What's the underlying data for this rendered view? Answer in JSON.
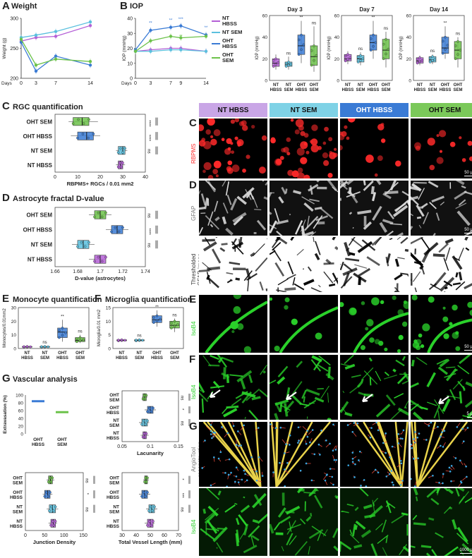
{
  "panels": {
    "A": {
      "letter": "A",
      "title": "Weight"
    },
    "B": {
      "letter": "B",
      "title": "IOP"
    },
    "C_left": {
      "letter": "C",
      "title": "RGC quantification"
    },
    "D_left": {
      "letter": "D",
      "title": "Astrocyte fractal D-value"
    },
    "E_left": {
      "letter": "E",
      "title": "Monocyte quantification"
    },
    "F_left": {
      "letter": "F",
      "title": "Microglia quantification"
    },
    "G_left": {
      "letter": "G",
      "title": "Vascular analysis"
    },
    "C_right": {
      "letter": "C"
    },
    "D_right": {
      "letter": "D"
    },
    "E_right": {
      "letter": "E"
    },
    "F_right": {
      "letter": "F"
    },
    "G_right": {
      "letter": "G"
    }
  },
  "groups": [
    "NT HBSS",
    "NT SEM",
    "OHT HBSS",
    "OHT SEM"
  ],
  "colors": {
    "NT HBSS": "#b45fd6",
    "NT SEM": "#5bc0de",
    "OHT HBSS": "#3a7bd5",
    "OHT SEM": "#6cc24a"
  },
  "legend": [
    "NT HBSS",
    "NT SEM",
    "OHT HBSS",
    "OHT SEM"
  ],
  "micro": {
    "headers": [
      "NT HBSS",
      "NT SEM",
      "OHT HBSS",
      "OHT SEM"
    ],
    "rows": [
      "RBPMS",
      "GFAP",
      "Thresholded GFAP-image",
      "IsoB4",
      "IsoB4",
      "AngioTool reconstruction",
      "IsoB4"
    ],
    "scalebars": [
      "50 µm",
      "50 µm",
      "50 µm",
      "5 µm",
      "1000 µm"
    ]
  },
  "chart_data": [
    {
      "id": "weight",
      "type": "line",
      "title": "Weight",
      "ylabel": "Weight (g)",
      "xlabel": "Days",
      "x": [
        0,
        3,
        7,
        14
      ],
      "ylim": [
        200,
        300
      ],
      "series": [
        {
          "name": "NT HBSS",
          "values": [
            262,
            268,
            270,
            288
          ]
        },
        {
          "name": "NT SEM",
          "values": [
            268,
            272,
            278,
            294
          ]
        },
        {
          "name": "OHT HBSS",
          "values": [
            260,
            212,
            237,
            222
          ]
        },
        {
          "name": "OHT SEM",
          "values": [
            265,
            222,
            232,
            228
          ]
        }
      ]
    },
    {
      "id": "iop",
      "type": "line",
      "title": "IOP",
      "ylabel": "IOP (mmHg)",
      "xlabel": "Days",
      "x": [
        0,
        3,
        7,
        9,
        14
      ],
      "ylim": [
        0,
        40
      ],
      "annotations": [
        "**",
        "**",
        "***",
        "**",
        "**",
        "*"
      ],
      "series": [
        {
          "name": "NT HBSS",
          "values": [
            18,
            19,
            20,
            20,
            18
          ]
        },
        {
          "name": "NT SEM",
          "values": [
            18,
            18,
            19,
            19,
            18
          ]
        },
        {
          "name": "OHT HBSS",
          "values": [
            19,
            32,
            34,
            35,
            29
          ]
        },
        {
          "name": "OHT SEM",
          "values": [
            18,
            25,
            28,
            27,
            28
          ]
        }
      ]
    },
    {
      "id": "day3",
      "type": "box",
      "title": "Day 3",
      "ylabel": "IOP (mmHg)",
      "ylim": [
        0,
        60
      ],
      "categories": [
        "NT HBSS",
        "NT SEM",
        "OHT HBSS",
        "OHT SEM"
      ],
      "medians": [
        16,
        15,
        32,
        22
      ],
      "q1": [
        13,
        13,
        24,
        14
      ],
      "q3": [
        20,
        17,
        42,
        32
      ],
      "min": [
        10,
        10,
        16,
        8
      ],
      "max": [
        24,
        22,
        55,
        50
      ],
      "sig": [
        "",
        "ns",
        "**",
        "ns"
      ]
    },
    {
      "id": "day7",
      "type": "box",
      "title": "Day 7",
      "ylabel": "IOP (mmHg)",
      "ylim": [
        0,
        60
      ],
      "categories": [
        "NT HBSS",
        "NT SEM",
        "OHT HBSS",
        "OHT SEM"
      ],
      "medians": [
        20,
        20,
        35,
        28
      ],
      "q1": [
        18,
        17,
        28,
        20
      ],
      "q3": [
        24,
        23,
        42,
        38
      ],
      "min": [
        15,
        14,
        20,
        12
      ],
      "max": [
        27,
        26,
        55,
        45
      ],
      "sig": [
        "",
        "ns",
        "**",
        "ns"
      ]
    },
    {
      "id": "day14",
      "type": "box",
      "title": "Day 14",
      "ylabel": "IOP (mmHg)",
      "ylim": [
        0,
        60
      ],
      "categories": [
        "NT HBSS",
        "NT SEM",
        "OHT HBSS",
        "OHT SEM"
      ],
      "medians": [
        18,
        19,
        30,
        28
      ],
      "q1": [
        16,
        17,
        25,
        20
      ],
      "q3": [
        21,
        22,
        40,
        36
      ],
      "min": [
        14,
        15,
        20,
        12
      ],
      "max": [
        23,
        24,
        50,
        40
      ],
      "sig": [
        "",
        "ns",
        "**",
        "ns"
      ]
    },
    {
      "id": "rgc",
      "type": "box-horizontal",
      "title": "RGC quantification",
      "xlabel": "RBPMS+ RGCs / 0.01 mm2",
      "xlim": [
        0,
        40
      ],
      "categories": [
        "OHT SEM",
        "OHT HBSS",
        "NT SEM",
        "NT HBSS"
      ],
      "medians": [
        12,
        14,
        30,
        29
      ],
      "q1": [
        8,
        10,
        28,
        28
      ],
      "q3": [
        15,
        17,
        31,
        30
      ],
      "min": [
        6,
        7,
        27,
        27
      ],
      "max": [
        19,
        20,
        32,
        31
      ],
      "sig": [
        "****",
        "****",
        "ns",
        ""
      ]
    },
    {
      "id": "astro",
      "type": "box-horizontal",
      "title": "Astrocyte fractal D-value",
      "xlabel": "D-value (astrocytes)",
      "xlim": [
        1.66,
        1.74
      ],
      "categories": [
        "OHT SEM",
        "OHT HBSS",
        "NT SEM",
        "NT HBSS"
      ],
      "medians": [
        1.7,
        1.715,
        1.685,
        1.7
      ],
      "q1": [
        1.695,
        1.71,
        1.68,
        1.695
      ],
      "q3": [
        1.705,
        1.72,
        1.69,
        1.705
      ],
      "min": [
        1.69,
        1.705,
        1.675,
        1.69
      ],
      "max": [
        1.71,
        1.725,
        1.695,
        1.705
      ],
      "sig": [
        "ns",
        "****",
        "ns",
        ""
      ]
    },
    {
      "id": "mono",
      "type": "box",
      "title": "Monocyte quantification",
      "ylabel": "Monocytes/0.01mm2",
      "ylim": [
        0,
        30
      ],
      "categories": [
        "NT HBSS",
        "NT SEM",
        "OHT HBSS",
        "OHT SEM"
      ],
      "medians": [
        1,
        1,
        12,
        6
      ],
      "q1": [
        1,
        1,
        8,
        5
      ],
      "q3": [
        1.5,
        1.5,
        15,
        8
      ],
      "min": [
        0.5,
        0.5,
        5,
        4
      ],
      "max": [
        2,
        2,
        21,
        10
      ],
      "sig": [
        "",
        "ns",
        "**",
        "ns"
      ]
    },
    {
      "id": "micro",
      "type": "box",
      "title": "Microglia quantification",
      "ylabel": "Microglia/0.01 mm2",
      "ylim": [
        0,
        15
      ],
      "categories": [
        "NT HBSS",
        "NT SEM",
        "OHT HBSS",
        "OHT SEM"
      ],
      "medians": [
        3,
        3,
        10.5,
        8.5
      ],
      "q1": [
        2.8,
        2.8,
        9.5,
        7.5
      ],
      "q3": [
        3.2,
        3.2,
        12,
        10
      ],
      "min": [
        2.5,
        2.5,
        8,
        6
      ],
      "max": [
        3.5,
        3.5,
        14,
        11
      ],
      "sig": [
        "",
        "ns",
        "**",
        "ns"
      ]
    },
    {
      "id": "extra",
      "type": "line",
      "title": "",
      "ylabel": "Extravasation (%)",
      "ylim": [
        0,
        100
      ],
      "categories": [
        "OHT HBSS",
        "OHT SEM"
      ],
      "values": [
        84,
        56
      ]
    },
    {
      "id": "lacun",
      "type": "box-horizontal",
      "xlabel": "Lacunarity",
      "xlim": [
        0.05,
        0.15
      ],
      "categories": [
        "OHT SEM",
        "OHT HBSS",
        "NT SEM",
        "NT HBSS"
      ],
      "medians": [
        0.09,
        0.1,
        0.09,
        0.09
      ],
      "q1": [
        0.087,
        0.095,
        0.085,
        0.087
      ],
      "q3": [
        0.093,
        0.105,
        0.095,
        0.093
      ],
      "min": [
        0.085,
        0.09,
        0.08,
        0.083
      ],
      "max": [
        0.095,
        0.11,
        0.098,
        0.097
      ],
      "sig": [
        "ns",
        "*",
        "ns",
        ""
      ]
    },
    {
      "id": "junc",
      "type": "box-horizontal",
      "xlabel": "Junction Density",
      "xlim": [
        0,
        150
      ],
      "categories": [
        "OHT SEM",
        "OHT HBSS",
        "NT SEM",
        "NT HBSS"
      ],
      "medians": [
        65,
        58,
        70,
        72
      ],
      "q1": [
        60,
        50,
        62,
        66
      ],
      "q3": [
        70,
        64,
        78,
        78
      ],
      "min": [
        55,
        45,
        55,
        60
      ],
      "max": [
        75,
        70,
        85,
        82
      ],
      "sig": [
        "ns",
        "*",
        "ns",
        ""
      ]
    },
    {
      "id": "vessel",
      "type": "box-horizontal",
      "xlabel": "Total Vessel Length (mm)",
      "xlim": [
        30,
        70
      ],
      "categories": [
        "OHT SEM",
        "OHT HBSS",
        "NT SEM",
        "NT HBSS"
      ],
      "medians": [
        47,
        46,
        51,
        50
      ],
      "q1": [
        46,
        44,
        49,
        48
      ],
      "q3": [
        48,
        48,
        53,
        52
      ],
      "min": [
        45,
        42,
        47,
        46
      ],
      "max": [
        49,
        50,
        55,
        53
      ],
      "sig": [
        "*",
        "***",
        "ns",
        ""
      ]
    }
  ]
}
